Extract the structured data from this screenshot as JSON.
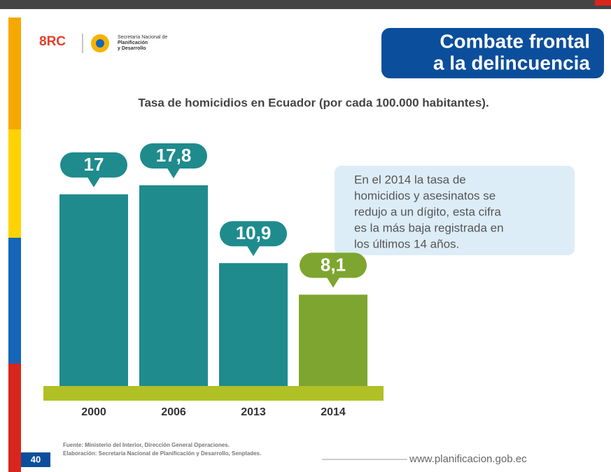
{
  "header": {
    "title": [
      "Combate frontal",
      "a la delincuencia"
    ],
    "logo": "8RC",
    "logo_caption": [
      "Secretaría Nacional de",
      "Planificación",
      "y Desarrollo"
    ]
  },
  "chart_data": {
    "type": "bar",
    "title": "Tasa de homicidios en Ecuador (por cada 100.000 habitantes).",
    "categories": [
      "2000",
      "2006",
      "2013",
      "2014"
    ],
    "values": [
      17,
      17.8,
      10.9,
      8.1
    ],
    "value_labels": [
      "17",
      "17,8",
      "10,9",
      "8,1"
    ],
    "colors": [
      "#1f8b8d",
      "#1f8b8d",
      "#1f8b8d",
      "#7ea52f"
    ],
    "annotation": [
      "En el 2014 la tasa de",
      "homicidios y asesinatos se",
      "redujo a un dígito, esta cifra",
      "es la más baja registrada en",
      "los últimos 14 años."
    ]
  },
  "footer": {
    "source": "Fuente: Ministerio del Interior, Dirección General Operaciones.",
    "elaboration": "Elaboración: Secretaría Nacional de Planificación y Desarrollo, Senplades.",
    "page": "40",
    "url": "www.planificacion.gob.ec"
  }
}
